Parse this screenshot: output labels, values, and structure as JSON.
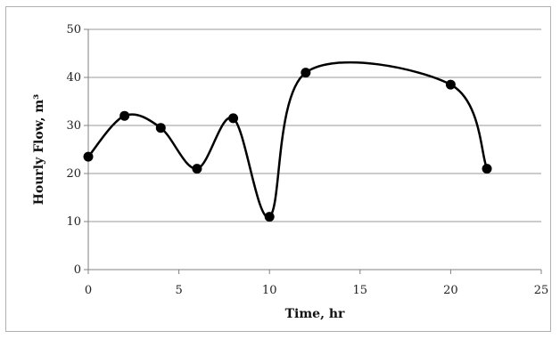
{
  "chart_data": {
    "type": "line",
    "title": "",
    "xlabel": "Time, hr",
    "ylabel": "Hourly Flow, m³",
    "xlim": [
      0,
      25
    ],
    "ylim": [
      0,
      50
    ],
    "x_ticks": [
      0,
      5,
      10,
      15,
      20,
      25
    ],
    "y_ticks": [
      0,
      10,
      20,
      30,
      40,
      50
    ],
    "grid": "horizontal",
    "smooth": true,
    "line_color": "#000000",
    "marker": "circle",
    "series": [
      {
        "x": [
          0,
          2,
          4,
          6,
          8,
          10,
          12,
          20,
          22
        ],
        "y": [
          23.5,
          32,
          29.5,
          21,
          31.5,
          11,
          41,
          38.5,
          21
        ]
      }
    ]
  }
}
